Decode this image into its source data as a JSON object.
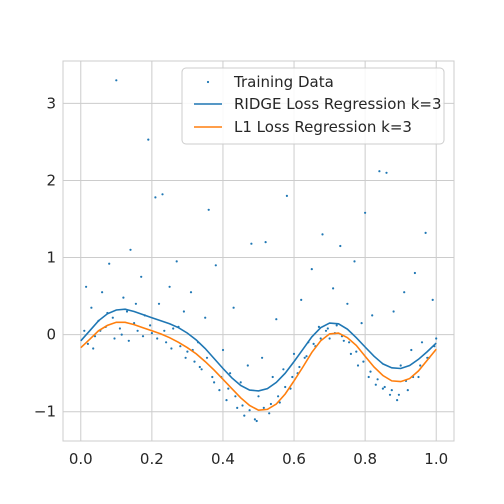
{
  "chart_data": {
    "type": "scatter",
    "title": "",
    "xlabel": "",
    "ylabel": "",
    "xlim": [
      -0.05,
      1.05
    ],
    "ylim": [
      -1.38,
      3.55
    ],
    "grid": true,
    "legend_placement": "top-right",
    "xticks": [
      0.0,
      0.2,
      0.4,
      0.6,
      0.8,
      1.0
    ],
    "xtick_labels": [
      "0.0",
      "0.2",
      "0.4",
      "0.6",
      "0.8",
      "1.0"
    ],
    "yticks": [
      -1,
      0,
      1,
      2,
      3
    ],
    "ytick_labels": [
      "−1",
      "0",
      "1",
      "2",
      "3"
    ],
    "series": [
      {
        "name": "Training Data",
        "kind": "scatter",
        "color": "#1f77b4",
        "points": [
          [
            0.01,
            0.05
          ],
          [
            0.02,
            -0.12
          ],
          [
            0.03,
            0.35
          ],
          [
            0.04,
            -0.02
          ],
          [
            0.05,
            0.18
          ],
          [
            0.06,
            0.55
          ],
          [
            0.07,
            0.1
          ],
          [
            0.08,
            0.92
          ],
          [
            0.09,
            0.22
          ],
          [
            0.1,
            3.3
          ],
          [
            0.11,
            0.08
          ],
          [
            0.12,
            0.48
          ],
          [
            0.13,
            0.3
          ],
          [
            0.14,
            1.1
          ],
          [
            0.15,
            0.15
          ],
          [
            0.16,
            0.05
          ],
          [
            0.17,
            0.75
          ],
          [
            0.18,
            0.25
          ],
          [
            0.19,
            2.53
          ],
          [
            0.2,
            0.02
          ],
          [
            0.21,
            1.78
          ],
          [
            0.22,
            0.4
          ],
          [
            0.23,
            1.82
          ],
          [
            0.24,
            -0.1
          ],
          [
            0.25,
            0.62
          ],
          [
            0.26,
            0.08
          ],
          [
            0.27,
            0.95
          ],
          [
            0.28,
            -0.15
          ],
          [
            0.29,
            0.3
          ],
          [
            0.3,
            -0.22
          ],
          [
            0.31,
            0.55
          ],
          [
            0.32,
            -0.35
          ],
          [
            0.33,
            -0.1
          ],
          [
            0.34,
            -0.45
          ],
          [
            0.35,
            0.22
          ],
          [
            0.36,
            1.62
          ],
          [
            0.37,
            -0.55
          ],
          [
            0.38,
            0.9
          ],
          [
            0.39,
            -0.72
          ],
          [
            0.4,
            -0.2
          ],
          [
            0.41,
            -0.85
          ],
          [
            0.42,
            -0.5
          ],
          [
            0.43,
            0.35
          ],
          [
            0.44,
            -0.95
          ],
          [
            0.45,
            -0.62
          ],
          [
            0.46,
            -1.05
          ],
          [
            0.47,
            -0.4
          ],
          [
            0.48,
            1.18
          ],
          [
            0.49,
            -1.1
          ],
          [
            0.5,
            -0.8
          ],
          [
            0.51,
            -0.3
          ],
          [
            0.52,
            1.2
          ],
          [
            0.53,
            -1.02
          ],
          [
            0.54,
            -0.55
          ],
          [
            0.55,
            0.2
          ],
          [
            0.56,
            -0.88
          ],
          [
            0.57,
            -0.45
          ],
          [
            0.58,
            1.8
          ],
          [
            0.59,
            -0.7
          ],
          [
            0.6,
            -0.25
          ],
          [
            0.61,
            -0.5
          ],
          [
            0.62,
            0.45
          ],
          [
            0.63,
            -0.3
          ],
          [
            0.64,
            -0.1
          ],
          [
            0.65,
            0.85
          ],
          [
            0.66,
            -0.15
          ],
          [
            0.67,
            0.1
          ],
          [
            0.68,
            1.3
          ],
          [
            0.69,
            0.05
          ],
          [
            0.7,
            -0.05
          ],
          [
            0.71,
            0.6
          ],
          [
            0.72,
            0.12
          ],
          [
            0.73,
            1.15
          ],
          [
            0.74,
            -0.08
          ],
          [
            0.75,
            0.4
          ],
          [
            0.76,
            -0.25
          ],
          [
            0.77,
            0.95
          ],
          [
            0.78,
            -0.4
          ],
          [
            0.79,
            0.15
          ],
          [
            0.8,
            1.58
          ],
          [
            0.81,
            -0.55
          ],
          [
            0.82,
            0.25
          ],
          [
            0.83,
            -0.65
          ],
          [
            0.84,
            2.12
          ],
          [
            0.85,
            -0.7
          ],
          [
            0.86,
            2.1
          ],
          [
            0.87,
            -0.78
          ],
          [
            0.88,
            0.3
          ],
          [
            0.89,
            -0.85
          ],
          [
            0.9,
            -0.4
          ],
          [
            0.91,
            0.55
          ],
          [
            0.92,
            -0.72
          ],
          [
            0.93,
            -0.2
          ],
          [
            0.94,
            0.8
          ],
          [
            0.95,
            -0.55
          ],
          [
            0.96,
            -0.1
          ],
          [
            0.97,
            1.32
          ],
          [
            0.98,
            -0.3
          ],
          [
            0.99,
            0.45
          ],
          [
            1.0,
            -0.05
          ],
          [
            0.015,
            0.62
          ],
          [
            0.035,
            -0.18
          ],
          [
            0.055,
            0.05
          ],
          [
            0.075,
            0.28
          ],
          [
            0.095,
            -0.05
          ],
          [
            0.115,
            0.0
          ],
          [
            0.135,
            -0.08
          ],
          [
            0.155,
            0.4
          ],
          [
            0.175,
            -0.02
          ],
          [
            0.195,
            0.12
          ],
          [
            0.215,
            -0.05
          ],
          [
            0.235,
            0.05
          ],
          [
            0.255,
            -0.18
          ],
          [
            0.275,
            0.1
          ],
          [
            0.295,
            -0.3
          ],
          [
            0.315,
            -0.2
          ],
          [
            0.335,
            -0.42
          ],
          [
            0.355,
            -0.3
          ],
          [
            0.375,
            -0.62
          ],
          [
            0.395,
            -0.55
          ],
          [
            0.415,
            -0.7
          ],
          [
            0.435,
            -0.8
          ],
          [
            0.455,
            -0.92
          ],
          [
            0.475,
            -0.98
          ],
          [
            0.495,
            -1.12
          ],
          [
            0.515,
            -0.95
          ],
          [
            0.535,
            -0.9
          ],
          [
            0.555,
            -0.8
          ],
          [
            0.575,
            -0.68
          ],
          [
            0.595,
            -0.55
          ],
          [
            0.615,
            -0.42
          ],
          [
            0.635,
            -0.28
          ],
          [
            0.655,
            -0.12
          ],
          [
            0.675,
            -0.05
          ],
          [
            0.695,
            0.08
          ],
          [
            0.715,
            0.02
          ],
          [
            0.735,
            -0.02
          ],
          [
            0.755,
            -0.1
          ],
          [
            0.775,
            -0.22
          ],
          [
            0.795,
            -0.35
          ],
          [
            0.815,
            -0.48
          ],
          [
            0.835,
            -0.58
          ],
          [
            0.855,
            -0.68
          ],
          [
            0.875,
            -0.72
          ],
          [
            0.895,
            -0.78
          ],
          [
            0.915,
            -0.6
          ],
          [
            0.935,
            -0.55
          ],
          [
            0.955,
            -0.4
          ],
          [
            0.975,
            -0.3
          ],
          [
            0.995,
            -0.15
          ]
        ]
      },
      {
        "name": "RIDGE Loss Regression k=3",
        "kind": "line",
        "color": "#1f77b4",
        "x": [
          0.0,
          0.025,
          0.05,
          0.075,
          0.1,
          0.125,
          0.15,
          0.175,
          0.2,
          0.225,
          0.25,
          0.275,
          0.3,
          0.325,
          0.35,
          0.375,
          0.4,
          0.425,
          0.45,
          0.475,
          0.5,
          0.525,
          0.55,
          0.575,
          0.6,
          0.625,
          0.65,
          0.675,
          0.7,
          0.725,
          0.75,
          0.775,
          0.8,
          0.825,
          0.85,
          0.875,
          0.9,
          0.925,
          0.95,
          0.975,
          1.0
        ],
        "y": [
          -0.08,
          0.05,
          0.18,
          0.27,
          0.32,
          0.33,
          0.3,
          0.26,
          0.22,
          0.18,
          0.14,
          0.09,
          0.02,
          -0.07,
          -0.18,
          -0.31,
          -0.44,
          -0.56,
          -0.66,
          -0.72,
          -0.73,
          -0.7,
          -0.62,
          -0.5,
          -0.35,
          -0.19,
          -0.03,
          0.09,
          0.15,
          0.14,
          0.07,
          -0.04,
          -0.16,
          -0.28,
          -0.38,
          -0.43,
          -0.44,
          -0.4,
          -0.32,
          -0.22,
          -0.11
        ]
      },
      {
        "name": "L1 Loss Regression k=3",
        "kind": "line",
        "color": "#ff7f0e",
        "x": [
          0.0,
          0.025,
          0.05,
          0.075,
          0.1,
          0.125,
          0.15,
          0.175,
          0.2,
          0.225,
          0.25,
          0.275,
          0.3,
          0.325,
          0.35,
          0.375,
          0.4,
          0.425,
          0.45,
          0.475,
          0.5,
          0.525,
          0.55,
          0.575,
          0.6,
          0.625,
          0.65,
          0.675,
          0.7,
          0.725,
          0.75,
          0.775,
          0.8,
          0.825,
          0.85,
          0.875,
          0.9,
          0.925,
          0.95,
          0.975,
          1.0
        ],
        "y": [
          -0.17,
          -0.06,
          0.05,
          0.12,
          0.16,
          0.16,
          0.13,
          0.09,
          0.05,
          0.01,
          -0.04,
          -0.1,
          -0.17,
          -0.25,
          -0.35,
          -0.46,
          -0.58,
          -0.7,
          -0.82,
          -0.92,
          -0.98,
          -0.97,
          -0.9,
          -0.77,
          -0.6,
          -0.42,
          -0.23,
          -0.08,
          0.01,
          0.02,
          -0.04,
          -0.14,
          -0.28,
          -0.42,
          -0.53,
          -0.6,
          -0.61,
          -0.57,
          -0.47,
          -0.33,
          -0.19
        ]
      }
    ]
  }
}
